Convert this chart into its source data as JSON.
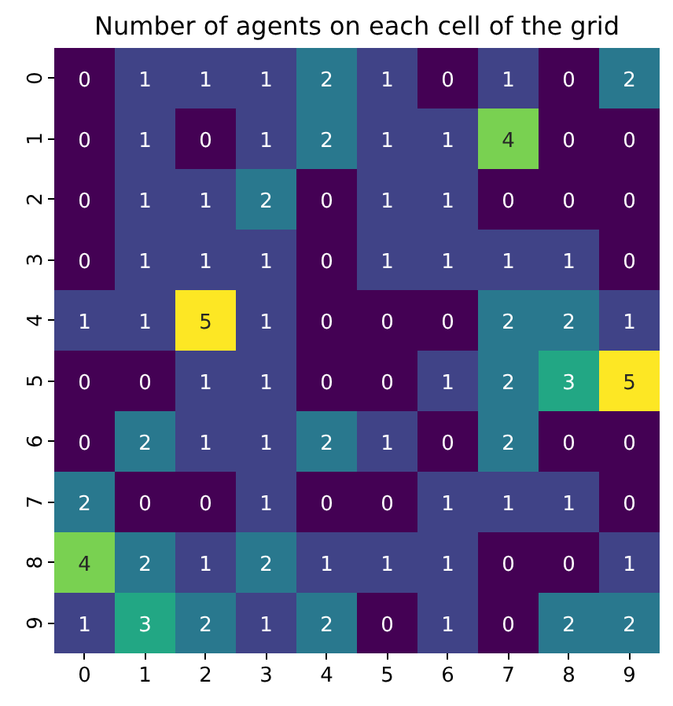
{
  "chart_data": {
    "type": "heatmap",
    "title": "Number of agents on each cell of the grid",
    "categories": [
      "0",
      "1",
      "2",
      "3",
      "4",
      "5",
      "6",
      "7",
      "8",
      "9"
    ],
    "y_categories": [
      "0",
      "1",
      "2",
      "3",
      "4",
      "5",
      "6",
      "7",
      "8",
      "9"
    ],
    "cells": [
      [
        0,
        1,
        1,
        1,
        2,
        1,
        0,
        1,
        0,
        2
      ],
      [
        0,
        1,
        0,
        1,
        2,
        1,
        1,
        4,
        0,
        0
      ],
      [
        0,
        1,
        1,
        2,
        0,
        1,
        1,
        0,
        0,
        0
      ],
      [
        0,
        1,
        1,
        1,
        0,
        1,
        1,
        1,
        1,
        0
      ],
      [
        1,
        1,
        5,
        1,
        0,
        0,
        0,
        2,
        2,
        1
      ],
      [
        0,
        0,
        1,
        1,
        0,
        0,
        1,
        2,
        3,
        5
      ],
      [
        0,
        2,
        1,
        1,
        2,
        1,
        0,
        2,
        0,
        0
      ],
      [
        2,
        0,
        0,
        1,
        0,
        0,
        1,
        1,
        1,
        0
      ],
      [
        4,
        2,
        1,
        2,
        1,
        1,
        1,
        0,
        0,
        1
      ],
      [
        1,
        3,
        2,
        1,
        2,
        0,
        1,
        0,
        2,
        2
      ]
    ],
    "data_labels": true
  }
}
